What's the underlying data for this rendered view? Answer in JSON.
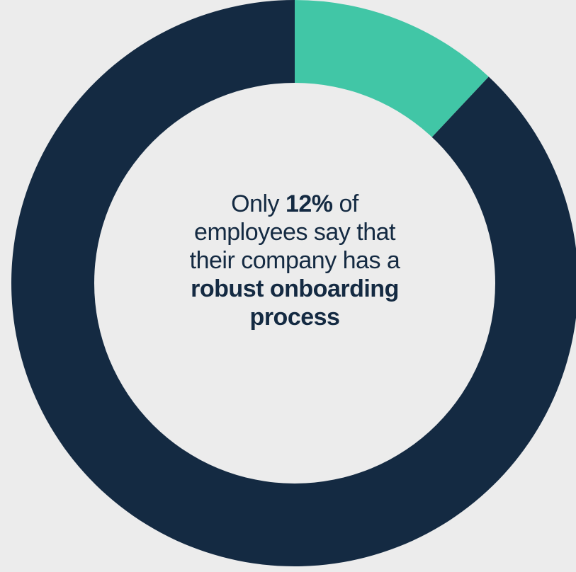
{
  "chart_data": {
    "type": "pie",
    "style": "donut",
    "slices": [
      {
        "value": 12,
        "color": "#41c6a6"
      },
      {
        "value": 88,
        "color": "#142a42"
      }
    ],
    "start_angle_deg": 0,
    "direction": "clockwise",
    "center_text": {
      "line1_a": "Only ",
      "line1_b": "12%",
      "line1_c": " of",
      "line2": "employees say that",
      "line3": "their company has a",
      "line4": "robust onboarding",
      "line5": "process"
    }
  },
  "colors": {
    "background": "#ececec",
    "highlight": "#41c6a6",
    "primary": "#142a42",
    "hole": "#ececec"
  }
}
